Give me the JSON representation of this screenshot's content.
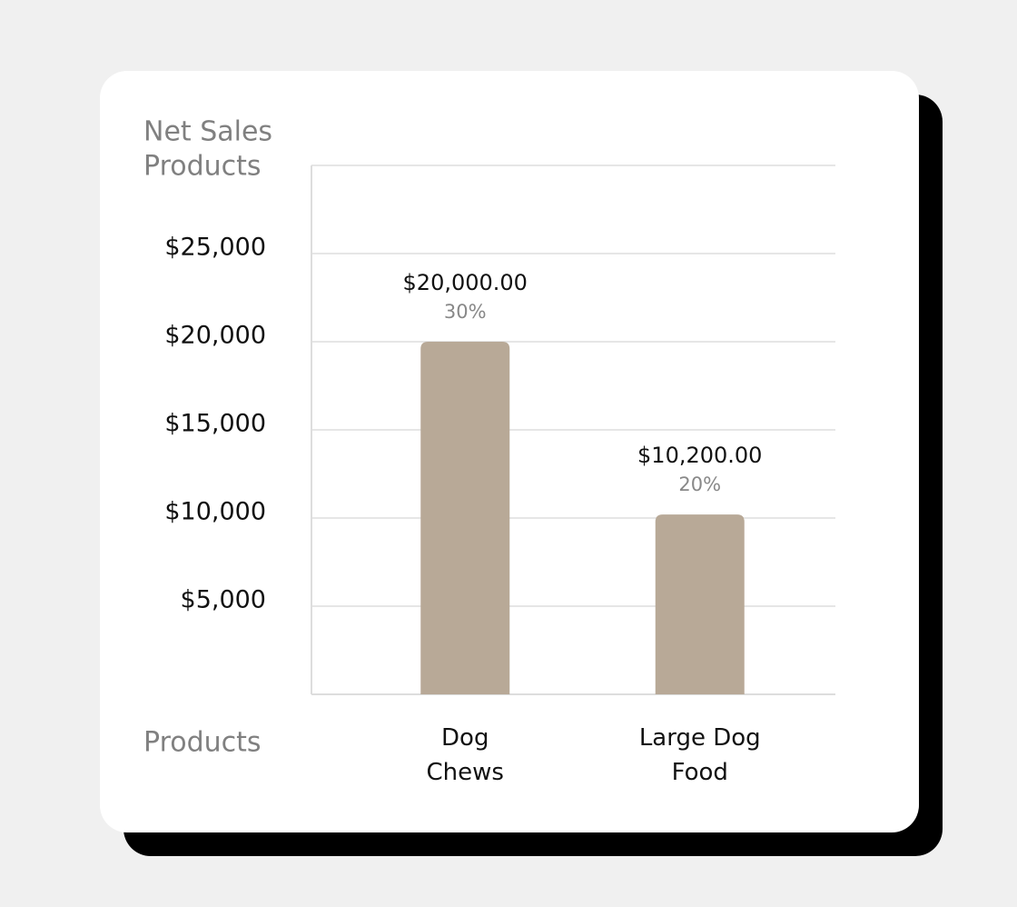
{
  "chart_data": {
    "type": "bar",
    "title": "Net Sales",
    "subtitle": "Products",
    "x_label": "Products",
    "categories": [
      "Dog Chews",
      "Large Dog Food"
    ],
    "values": [
      20000,
      10200
    ],
    "value_labels": [
      "$20,000.00",
      "$10,200.00"
    ],
    "shares": [
      {
        "value": 30,
        "label": "30%"
      },
      {
        "value": 20,
        "label": "20%"
      }
    ],
    "color": "#b8a997",
    "ylim": [
      0,
      30000
    ],
    "yticks": [
      {
        "value": 5000,
        "label": "$5,000"
      },
      {
        "value": 10000,
        "label": "$10,000"
      },
      {
        "value": 15000,
        "label": "$15,000"
      },
      {
        "value": 20000,
        "label": "$20,000"
      },
      {
        "value": 25000,
        "label": "$25,000"
      }
    ],
    "grid": true
  }
}
